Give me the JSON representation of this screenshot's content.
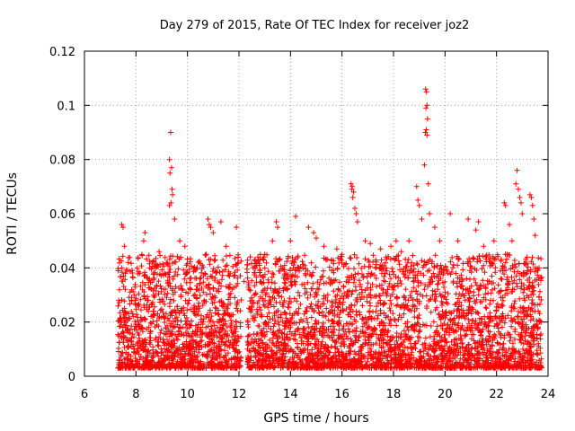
{
  "chart_data": {
    "type": "scatter",
    "title": "Day 279 of 2015, Rate Of TEC Index for receiver joz2",
    "xlabel": "GPS time / hours",
    "ylabel": "ROTI / TECUs",
    "xlim": [
      6,
      24
    ],
    "ylim": [
      0,
      0.12
    ],
    "xticks": [
      6,
      8,
      10,
      12,
      14,
      16,
      18,
      20,
      22,
      24
    ],
    "yticks": [
      0,
      0.02,
      0.04,
      0.06,
      0.08,
      0.1,
      0.12
    ],
    "xtick_labels": [
      "6",
      "8",
      "10",
      "12",
      "14",
      "16",
      "18",
      "20",
      "22",
      "24"
    ],
    "ytick_labels": [
      "0",
      "0.02",
      "0.04",
      "0.06",
      "0.08",
      "0.1",
      "0.12"
    ],
    "grid": true,
    "marker": "+",
    "color": "#ff0000",
    "series": [
      {
        "name": "joz2",
        "segments": [
          {
            "x_start": 7.3,
            "x_end": 12.1,
            "y_min": 0.003,
            "y_max": 0.045,
            "count": 1400
          },
          {
            "x_start": 12.3,
            "x_end": 23.75,
            "y_min": 0.003,
            "y_max": 0.045,
            "count": 3200
          }
        ],
        "peaks": [
          {
            "x": 7.45,
            "y": 0.056
          },
          {
            "x": 7.5,
            "y": 0.055
          },
          {
            "x": 7.55,
            "y": 0.048
          },
          {
            "x": 7.7,
            "y": 0.042
          },
          {
            "x": 8.3,
            "y": 0.05
          },
          {
            "x": 8.35,
            "y": 0.053
          },
          {
            "x": 8.9,
            "y": 0.046
          },
          {
            "x": 9.35,
            "y": 0.09
          },
          {
            "x": 9.3,
            "y": 0.08
          },
          {
            "x": 9.38,
            "y": 0.077
          },
          {
            "x": 9.32,
            "y": 0.075
          },
          {
            "x": 9.4,
            "y": 0.069
          },
          {
            "x": 9.42,
            "y": 0.067
          },
          {
            "x": 9.36,
            "y": 0.064
          },
          {
            "x": 9.3,
            "y": 0.063
          },
          {
            "x": 9.5,
            "y": 0.058
          },
          {
            "x": 9.7,
            "y": 0.05
          },
          {
            "x": 9.9,
            "y": 0.048
          },
          {
            "x": 10.8,
            "y": 0.058
          },
          {
            "x": 10.85,
            "y": 0.056
          },
          {
            "x": 10.9,
            "y": 0.055
          },
          {
            "x": 11.0,
            "y": 0.053
          },
          {
            "x": 11.3,
            "y": 0.057
          },
          {
            "x": 11.5,
            "y": 0.048
          },
          {
            "x": 11.9,
            "y": 0.055
          },
          {
            "x": 12.2,
            "y": 0.035
          },
          {
            "x": 12.6,
            "y": 0.03
          },
          {
            "x": 13.0,
            "y": 0.045
          },
          {
            "x": 13.45,
            "y": 0.057
          },
          {
            "x": 13.5,
            "y": 0.055
          },
          {
            "x": 13.3,
            "y": 0.05
          },
          {
            "x": 14.2,
            "y": 0.059
          },
          {
            "x": 14.0,
            "y": 0.05
          },
          {
            "x": 14.7,
            "y": 0.055
          },
          {
            "x": 14.9,
            "y": 0.053
          },
          {
            "x": 15.0,
            "y": 0.051
          },
          {
            "x": 15.3,
            "y": 0.048
          },
          {
            "x": 15.8,
            "y": 0.047
          },
          {
            "x": 16.0,
            "y": 0.045
          },
          {
            "x": 16.35,
            "y": 0.071
          },
          {
            "x": 16.4,
            "y": 0.07
          },
          {
            "x": 16.38,
            "y": 0.069
          },
          {
            "x": 16.45,
            "y": 0.068
          },
          {
            "x": 16.42,
            "y": 0.066
          },
          {
            "x": 16.5,
            "y": 0.062
          },
          {
            "x": 16.55,
            "y": 0.06
          },
          {
            "x": 16.6,
            "y": 0.057
          },
          {
            "x": 16.9,
            "y": 0.05
          },
          {
            "x": 17.1,
            "y": 0.049
          },
          {
            "x": 17.5,
            "y": 0.047
          },
          {
            "x": 17.9,
            "y": 0.048
          },
          {
            "x": 18.1,
            "y": 0.05
          },
          {
            "x": 18.3,
            "y": 0.046
          },
          {
            "x": 18.6,
            "y": 0.05
          },
          {
            "x": 18.9,
            "y": 0.07
          },
          {
            "x": 18.95,
            "y": 0.065
          },
          {
            "x": 19.0,
            "y": 0.063
          },
          {
            "x": 19.25,
            "y": 0.106
          },
          {
            "x": 19.28,
            "y": 0.105
          },
          {
            "x": 19.3,
            "y": 0.1
          },
          {
            "x": 19.26,
            "y": 0.099
          },
          {
            "x": 19.32,
            "y": 0.095
          },
          {
            "x": 19.27,
            "y": 0.091
          },
          {
            "x": 19.24,
            "y": 0.09
          },
          {
            "x": 19.3,
            "y": 0.089
          },
          {
            "x": 19.2,
            "y": 0.078
          },
          {
            "x": 19.35,
            "y": 0.071
          },
          {
            "x": 19.4,
            "y": 0.06
          },
          {
            "x": 19.1,
            "y": 0.058
          },
          {
            "x": 19.6,
            "y": 0.055
          },
          {
            "x": 19.8,
            "y": 0.05
          },
          {
            "x": 20.2,
            "y": 0.06
          },
          {
            "x": 20.5,
            "y": 0.05
          },
          {
            "x": 20.9,
            "y": 0.058
          },
          {
            "x": 21.2,
            "y": 0.054
          },
          {
            "x": 21.3,
            "y": 0.057
          },
          {
            "x": 21.5,
            "y": 0.048
          },
          {
            "x": 21.9,
            "y": 0.05
          },
          {
            "x": 22.3,
            "y": 0.064
          },
          {
            "x": 22.35,
            "y": 0.063
          },
          {
            "x": 22.5,
            "y": 0.056
          },
          {
            "x": 22.6,
            "y": 0.05
          },
          {
            "x": 22.8,
            "y": 0.076
          },
          {
            "x": 22.75,
            "y": 0.071
          },
          {
            "x": 22.85,
            "y": 0.069
          },
          {
            "x": 22.9,
            "y": 0.066
          },
          {
            "x": 22.95,
            "y": 0.064
          },
          {
            "x": 23.0,
            "y": 0.06
          },
          {
            "x": 23.3,
            "y": 0.067
          },
          {
            "x": 23.35,
            "y": 0.066
          },
          {
            "x": 23.4,
            "y": 0.063
          },
          {
            "x": 23.45,
            "y": 0.058
          },
          {
            "x": 23.5,
            "y": 0.052
          },
          {
            "x": 23.65,
            "y": 0.04
          }
        ]
      }
    ]
  }
}
